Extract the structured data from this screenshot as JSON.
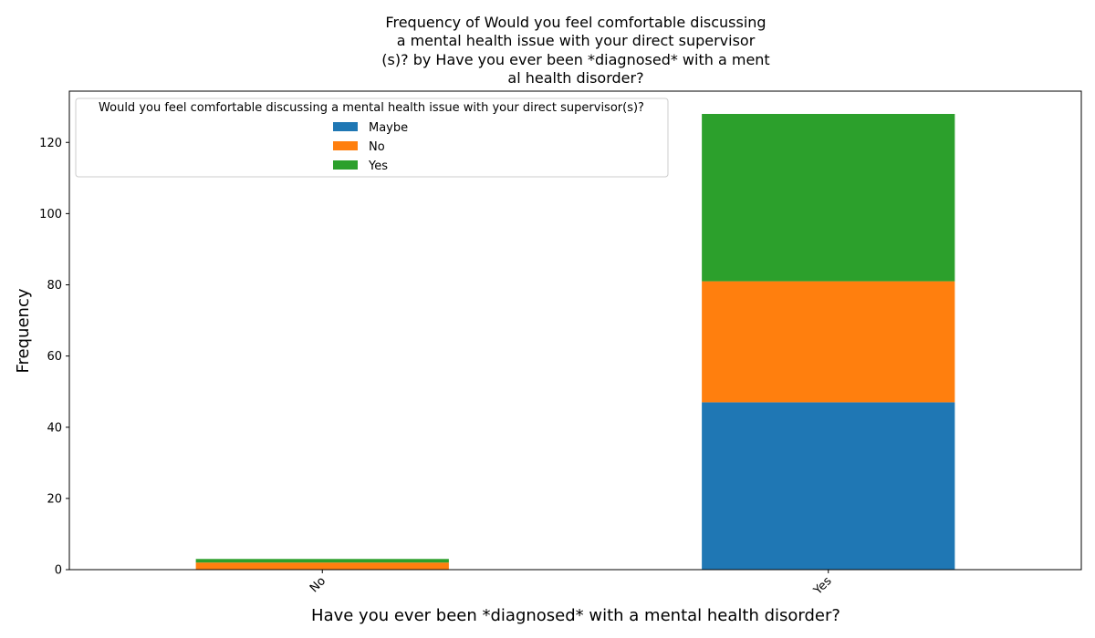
{
  "chart_data": {
    "type": "bar",
    "stacked": true,
    "title_lines": [
      "Frequency of Would you feel comfortable discussing",
      "a mental health issue with your direct supervisor",
      "(s)? by Have you ever been *diagnosed* with a ment",
      "al health disorder?"
    ],
    "xlabel": "Have you ever been *diagnosed* with a mental health disorder?",
    "ylabel": "Frequency",
    "categories": [
      "No",
      "Yes"
    ],
    "series": [
      {
        "name": "Maybe",
        "color": "#1f77b4",
        "values": [
          0,
          47
        ]
      },
      {
        "name": "No",
        "color": "#ff7f0e",
        "values": [
          2,
          34
        ]
      },
      {
        "name": "Yes",
        "color": "#2ca02c",
        "values": [
          1,
          47
        ]
      }
    ],
    "ylim": [
      0,
      134.4
    ],
    "yticks": [
      0,
      20,
      40,
      60,
      80,
      100,
      120
    ],
    "legend": {
      "title": "Would you feel comfortable discussing a mental health issue with your direct supervisor(s)?",
      "placement": "top-left"
    },
    "grid": false
  }
}
